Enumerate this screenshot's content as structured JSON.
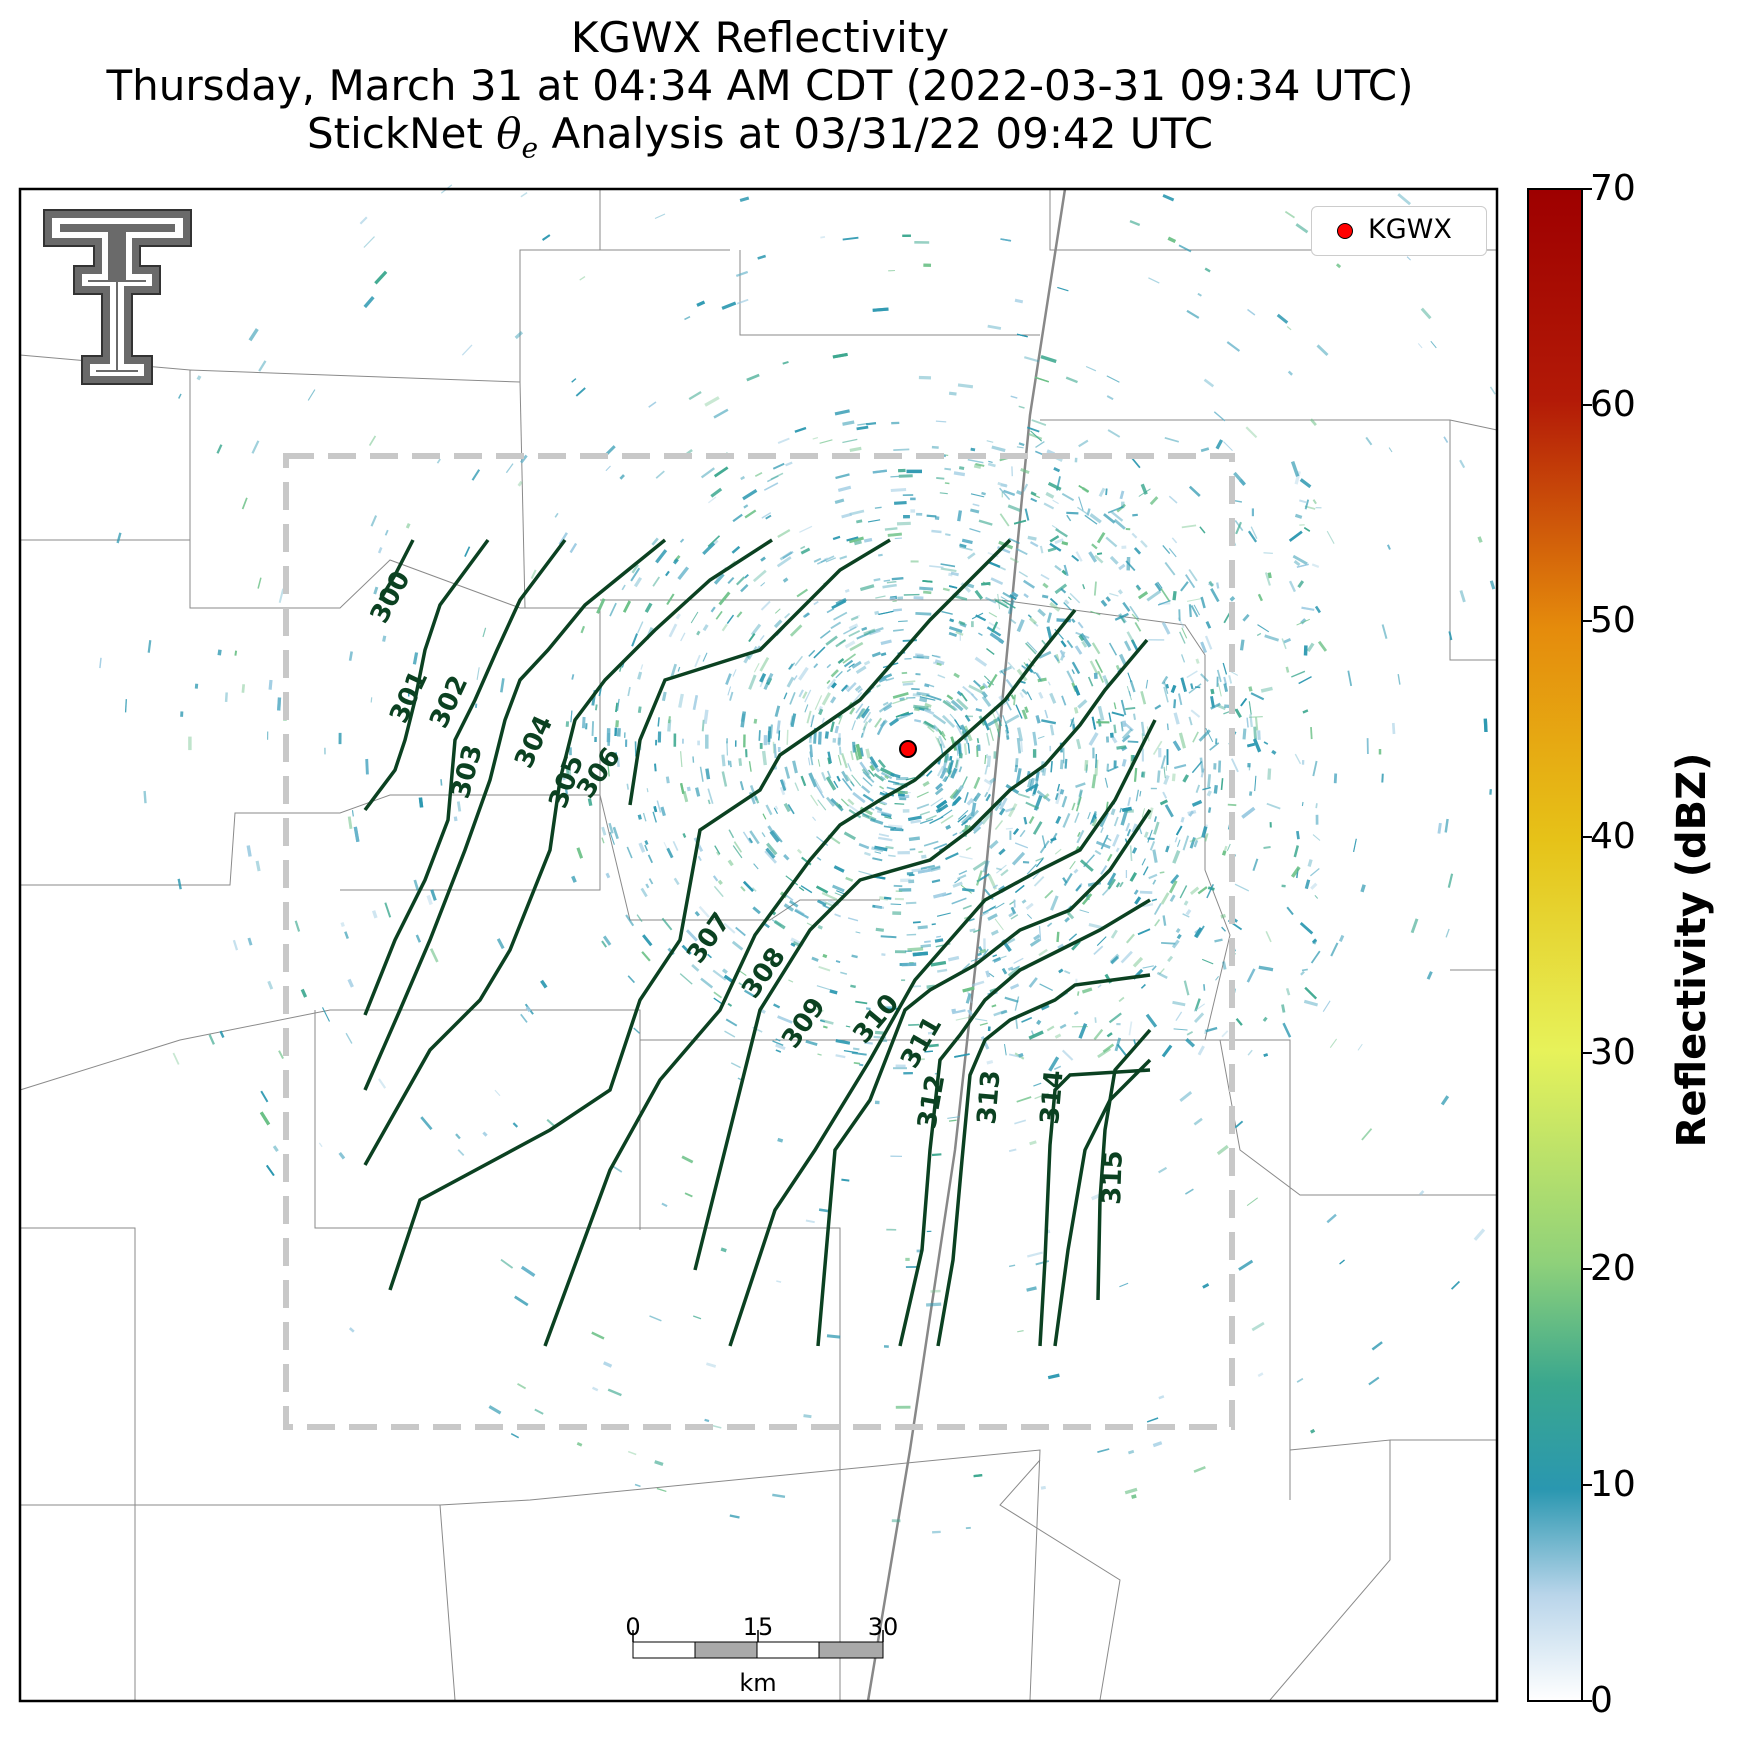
{
  "title": {
    "line1": "KGWX Reflectivity",
    "line2": "Thursday, March 31 at 04:34 AM CDT (2022-03-31 09:34 UTC)",
    "line3_prefix": "StickNet ",
    "line3_symbol": "θ",
    "line3_sub": "e",
    "line3_suffix": " Analysis at 03/31/22 09:42 UTC"
  },
  "legend": {
    "label": "KGWX",
    "marker_color": "#ff0000"
  },
  "colorbar": {
    "label": "Reflectivity (dBZ)",
    "ticks": [
      "0",
      "10",
      "20",
      "30",
      "40",
      "50",
      "60",
      "70"
    ],
    "range": [
      0,
      70
    ],
    "colors": [
      "#ffffff",
      "#b9d5ea",
      "#2a97b0",
      "#3aa78e",
      "#8fd17a",
      "#e7f25a",
      "#e6c218",
      "#e58b0c",
      "#d44a0a",
      "#b31a07",
      "#9e0000"
    ]
  },
  "scale_bar": {
    "ticks": [
      "0",
      "15",
      "30"
    ],
    "unit": "km"
  },
  "logo": {
    "text": "TT",
    "name": "Texas Tech Double T"
  },
  "chart_data": {
    "type": "contour",
    "product": "radar reflectivity with equivalent potential temperature contours",
    "radar_site": "KGWX",
    "contour_levels": [
      300,
      301,
      302,
      303,
      304,
      305,
      306,
      307,
      308,
      309,
      310,
      311,
      312,
      313,
      314,
      315
    ],
    "contour_color": "#0b4121",
    "analysis_domain": "dashed gray box",
    "colorbar_range": [
      0,
      70
    ]
  }
}
